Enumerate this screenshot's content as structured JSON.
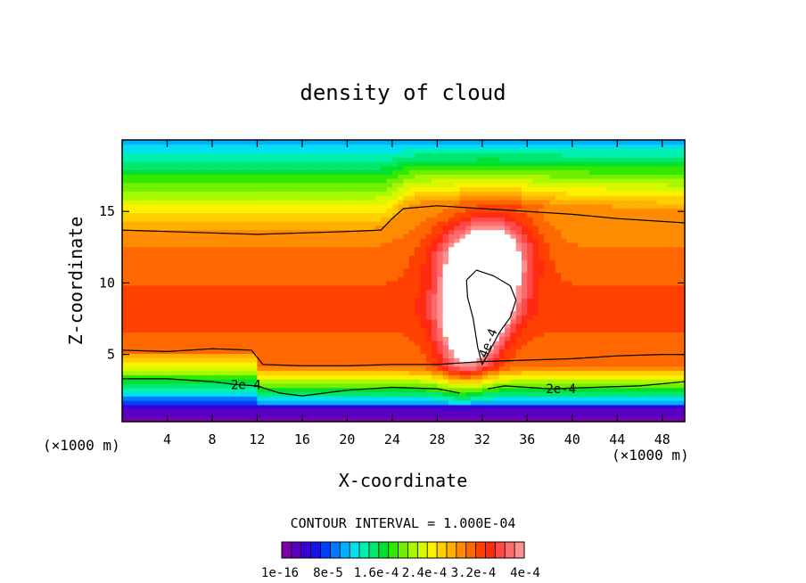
{
  "chart_data": {
    "type": "heatmap",
    "title": "density of cloud",
    "xlabel": "X-coordinate",
    "ylabel": "Z-coordinate",
    "x_unit_label_left": "(×1000 m)",
    "x_unit_label_right": "(×1000 m)",
    "xlim": [
      0,
      50
    ],
    "ylim": [
      0.3,
      20
    ],
    "x_ticks": [
      4,
      8,
      12,
      16,
      20,
      24,
      28,
      32,
      36,
      40,
      44,
      48
    ],
    "x_tick_labels": [
      "4",
      "8",
      "12",
      "16",
      "20",
      "24",
      "28",
      "32",
      "36",
      "40",
      "44",
      "48"
    ],
    "y_ticks": [
      5,
      10,
      15
    ],
    "y_tick_labels": [
      "5",
      "10",
      "15"
    ],
    "contour_interval_text": "CONTOUR INTERVAL = 1.000E-04",
    "contour_labels": [
      {
        "text": "2e-4",
        "x": 11,
        "y": 2.9
      },
      {
        "text": "2e-4",
        "x": 39,
        "y": 2.6
      },
      {
        "text": "4e-4",
        "x": 32.5,
        "y": 5.8
      }
    ],
    "colorbar": {
      "tick_labels": [
        "1e-16",
        "8e-5",
        "1.6e-4",
        "2.4e-4",
        "3.2e-4",
        "4e-4"
      ],
      "colors": [
        "#7a00a8",
        "#5a00c0",
        "#3a00d8",
        "#1a10e8",
        "#0040f8",
        "#0078ff",
        "#00b0ff",
        "#00e0f0",
        "#00f0b0",
        "#00e870",
        "#00e030",
        "#30e800",
        "#70f000",
        "#a8f800",
        "#d8f800",
        "#fff000",
        "#ffd000",
        "#ffb000",
        "#ff8c00",
        "#ff6800",
        "#ff4000",
        "#ff2a10",
        "#ff4848",
        "#ff6a6a",
        "#ff9090"
      ],
      "max_color": "#ffffff"
    }
  }
}
